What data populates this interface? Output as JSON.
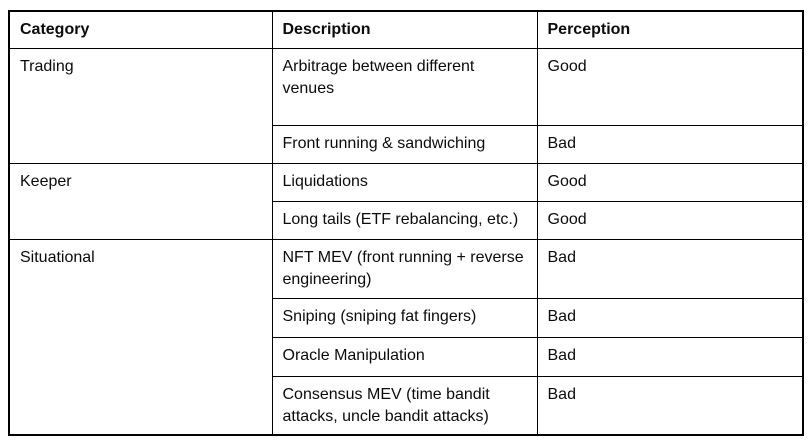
{
  "table": {
    "headers": [
      "Category",
      "Description",
      "Perception"
    ],
    "groups": [
      {
        "category": "Trading",
        "rows": [
          {
            "description": "Arbitrage between different venues",
            "perception": "Good"
          },
          {
            "description": "Front running & sandwiching",
            "perception": "Bad"
          }
        ]
      },
      {
        "category": "Keeper",
        "rows": [
          {
            "description": "Liquidations",
            "perception": "Good"
          },
          {
            "description": "Long tails (ETF rebalancing, etc.)",
            "perception": "Good"
          }
        ]
      },
      {
        "category": "Situational",
        "rows": [
          {
            "description": "NFT MEV (front running + reverse engineering)",
            "perception": "Bad"
          },
          {
            "description": "Sniping (sniping fat fingers)",
            "perception": "Bad"
          },
          {
            "description": "Oracle Manipulation",
            "perception": "Bad"
          },
          {
            "description": "Consensus MEV (time bandit attacks, uncle bandit attacks)",
            "perception": "Bad"
          }
        ]
      }
    ],
    "colors": {
      "border": "#000000",
      "text": "#0b0b0b",
      "background": "#ffffff"
    }
  }
}
